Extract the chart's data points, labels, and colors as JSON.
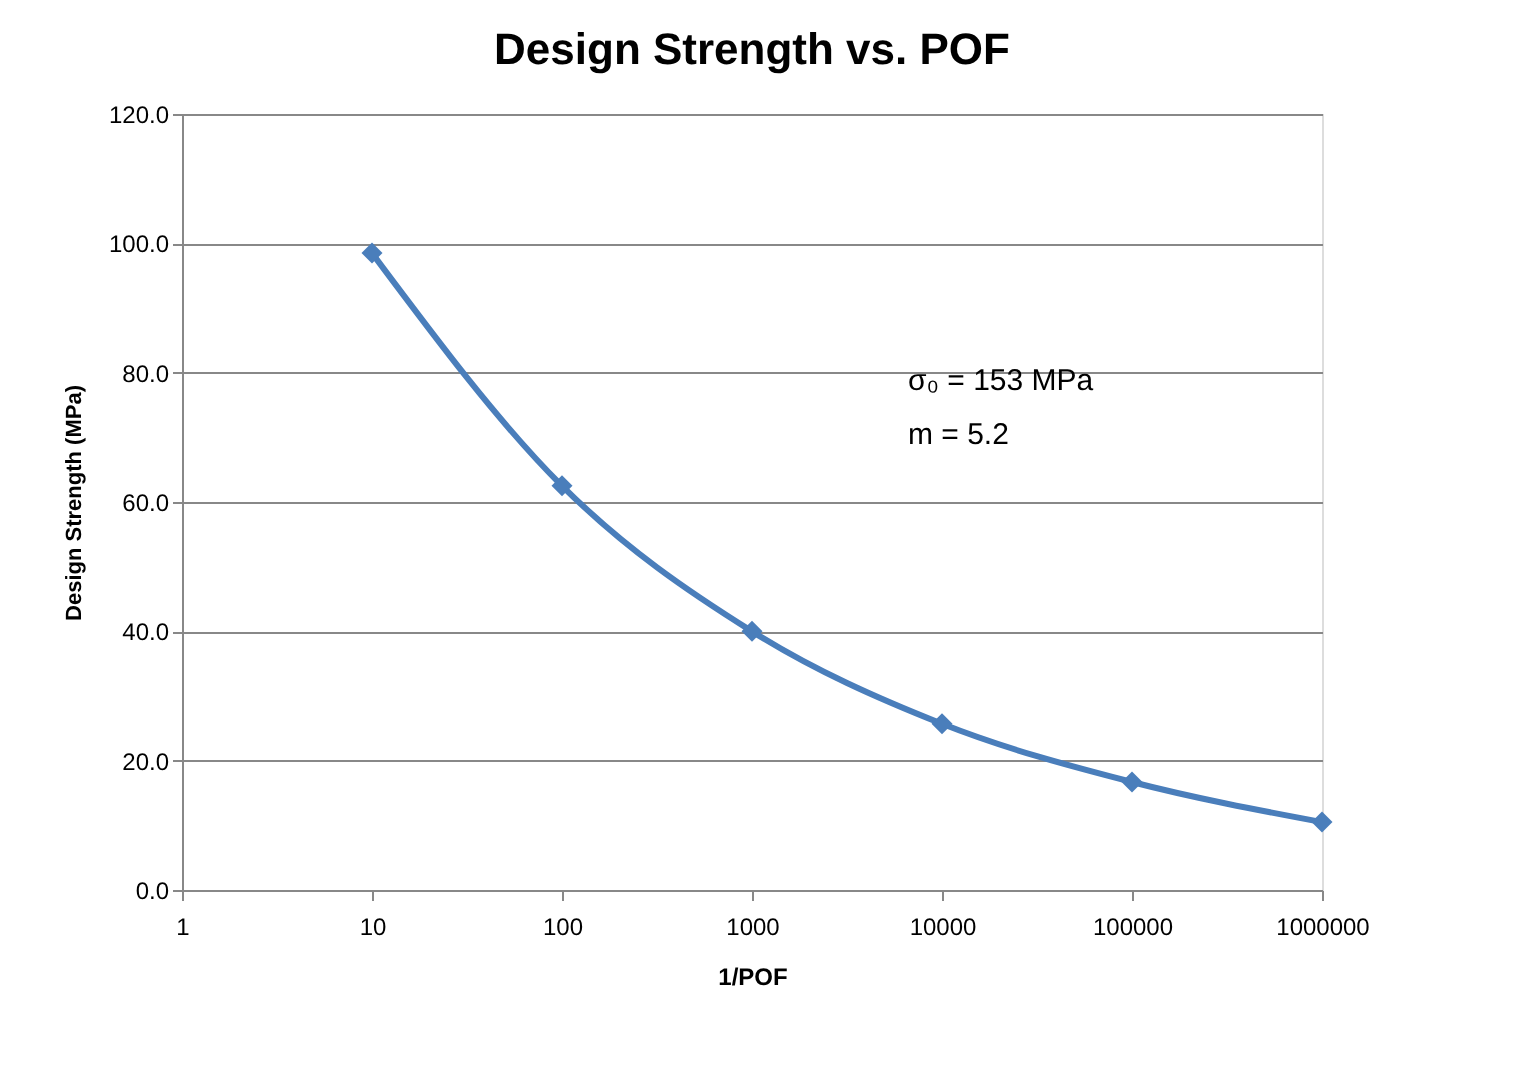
{
  "chart_data": {
    "type": "line",
    "title": "Design Strength vs. POF",
    "xlabel": "1/POF",
    "ylabel": "Design Strength (MPa)",
    "x": [
      10,
      100,
      1000,
      10000,
      100000,
      1000000
    ],
    "series": [
      {
        "color": "#4a7ebb",
        "values": [
          98.5,
          62.5,
          40.0,
          25.7,
          16.7,
          10.5
        ]
      }
    ],
    "log": "x",
    "xlim": [
      1,
      1000000
    ],
    "xticks": [
      1,
      10,
      100,
      1000,
      10000,
      100000,
      1000000
    ],
    "ylim": [
      0,
      120
    ],
    "yticks": [
      {
        "value": 0,
        "label": "0.0"
      },
      {
        "value": 20,
        "label": "20.0"
      },
      {
        "value": 40,
        "label": "40.0"
      },
      {
        "value": 60,
        "label": "60.0"
      },
      {
        "value": 80,
        "label": "80.0"
      },
      {
        "value": 100,
        "label": "100.0"
      },
      {
        "value": 120,
        "label": "120.0"
      }
    ],
    "grid": "y",
    "marker": "diamond",
    "line_style": "solid",
    "annotations": [
      "σ₀ = 153 MPa",
      "m = 5.2"
    ]
  }
}
